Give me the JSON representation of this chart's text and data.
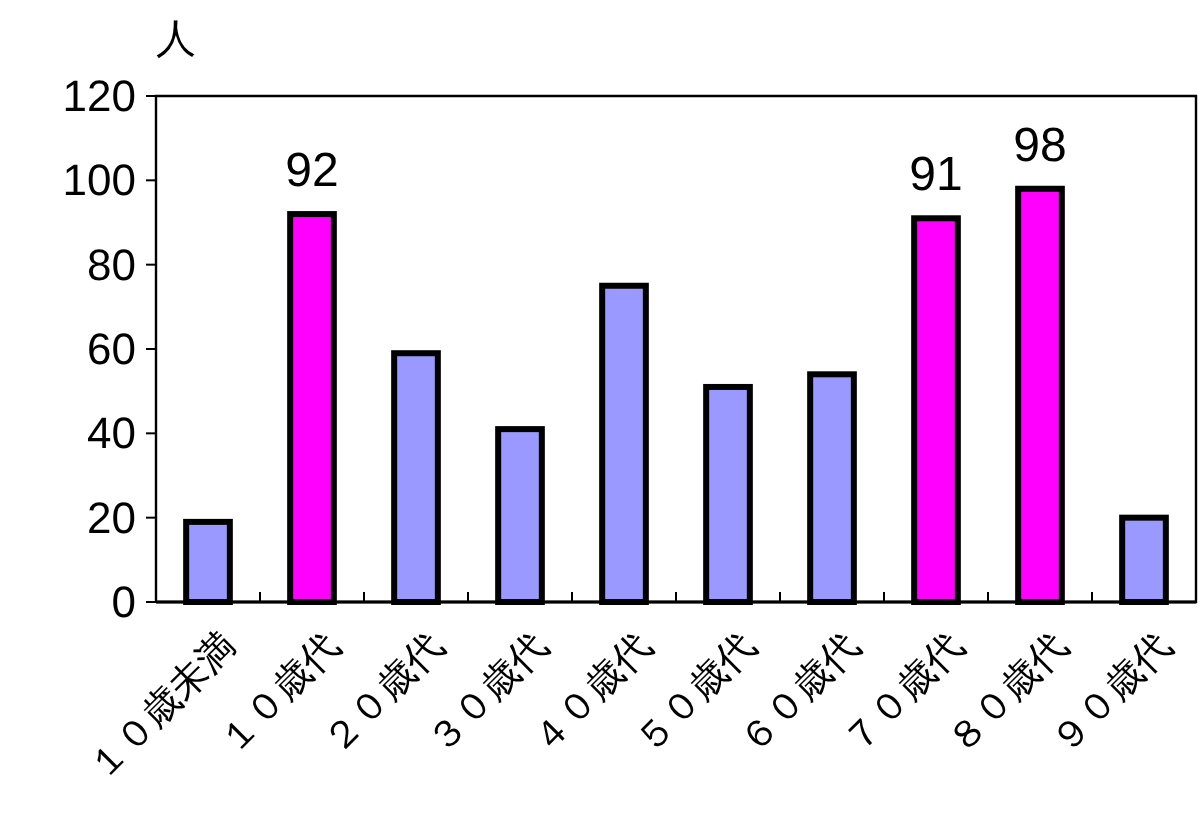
{
  "chart_data": {
    "type": "bar",
    "ylabel": "人",
    "categories": [
      "１０歳未満",
      "１０歳代",
      "２０歳代",
      "３０歳代",
      "４０歳代",
      "５０歳代",
      "６０歳代",
      "７０歳代",
      "８０歳代",
      "９０歳代"
    ],
    "values": [
      19,
      92,
      59,
      41,
      75,
      51,
      54,
      91,
      98,
      20
    ],
    "colors": [
      "#9999ff",
      "#ff00ff",
      "#9999ff",
      "#9999ff",
      "#9999ff",
      "#9999ff",
      "#9999ff",
      "#ff00ff",
      "#ff00ff",
      "#9999ff"
    ],
    "value_labels": [
      null,
      "92",
      null,
      null,
      null,
      null,
      null,
      "91",
      "98",
      null
    ],
    "ylim": [
      0,
      120
    ],
    "yticks": [
      0,
      20,
      40,
      60,
      80,
      100,
      120
    ],
    "grid": false
  }
}
